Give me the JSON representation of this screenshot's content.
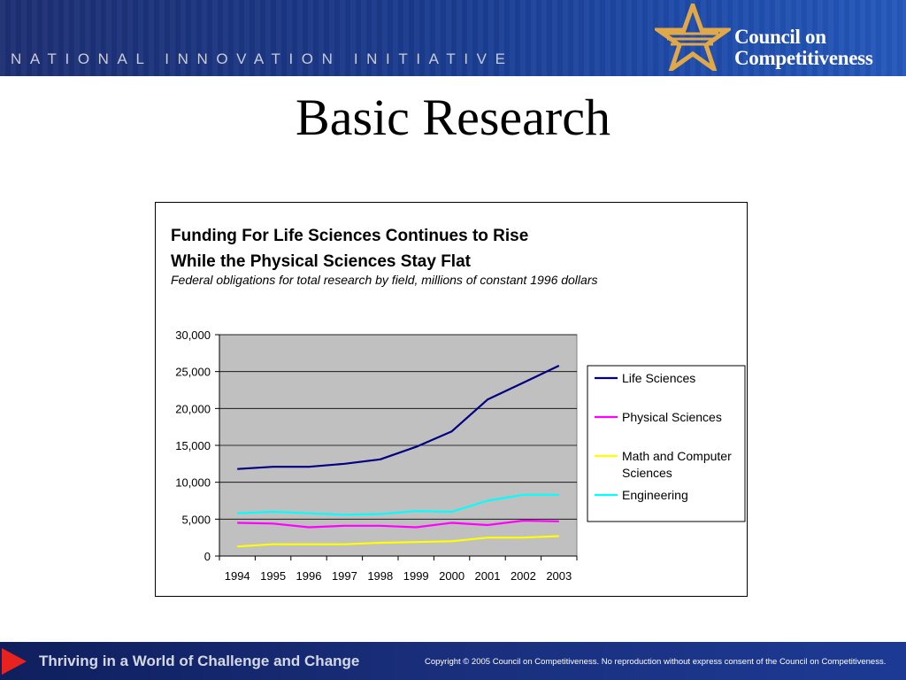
{
  "header": {
    "banner_text": "NATIONAL INNOVATION INITIATIVE",
    "logo_line1": "Council on",
    "logo_line2": "Competitiveness",
    "logo_icon": "star-icon"
  },
  "slide": {
    "title": "Basic Research"
  },
  "footer": {
    "tagline": "Thriving in a World of Challenge and Change",
    "copyright": "Copyright © 2005 Council on Competitiveness. No reproduction without express consent of the Council on Competitiveness.",
    "arrow_icon": "play-arrow-icon"
  },
  "chart_data": {
    "type": "line",
    "title": "Funding For Life Sciences Continues to Rise While the Physical Sciences Stay Flat",
    "title_line1": "Funding For Life Sciences Continues to Rise",
    "title_line2": "While the Physical Sciences Stay Flat",
    "subtitle": "Federal obligations for total research by field, millions of constant 1996 dollars",
    "xlabel": "",
    "ylabel": "",
    "categories": [
      "1994",
      "1995",
      "1996",
      "1997",
      "1998",
      "1999",
      "2000",
      "2001",
      "2002",
      "2003"
    ],
    "ylim": [
      0,
      30000
    ],
    "yticks": [
      "0",
      "5,000",
      "10,000",
      "15,000",
      "20,000",
      "25,000",
      "30,000"
    ],
    "ytick_values": [
      0,
      5000,
      10000,
      15000,
      20000,
      25000,
      30000
    ],
    "grid": true,
    "plot_background": "#c0c0c0",
    "legend_position": "right",
    "series": [
      {
        "name": "Life Sciences",
        "color": "#000080",
        "values": [
          11800,
          12100,
          12100,
          12500,
          13100,
          14800,
          16900,
          21200,
          23500,
          25800
        ]
      },
      {
        "name": "Physical Sciences",
        "color": "#ff00ff",
        "values": [
          4500,
          4400,
          3900,
          4100,
          4100,
          3900,
          4500,
          4200,
          4800,
          4700
        ]
      },
      {
        "name": "Math and Computer Sciences",
        "color": "#ffff00",
        "values": [
          1300,
          1600,
          1600,
          1600,
          1800,
          1900,
          2000,
          2500,
          2500,
          2700
        ]
      },
      {
        "name": "Engineering",
        "color": "#00ffff",
        "values": [
          5800,
          6000,
          5800,
          5600,
          5700,
          6100,
          6000,
          7500,
          8300,
          8300
        ]
      }
    ]
  }
}
